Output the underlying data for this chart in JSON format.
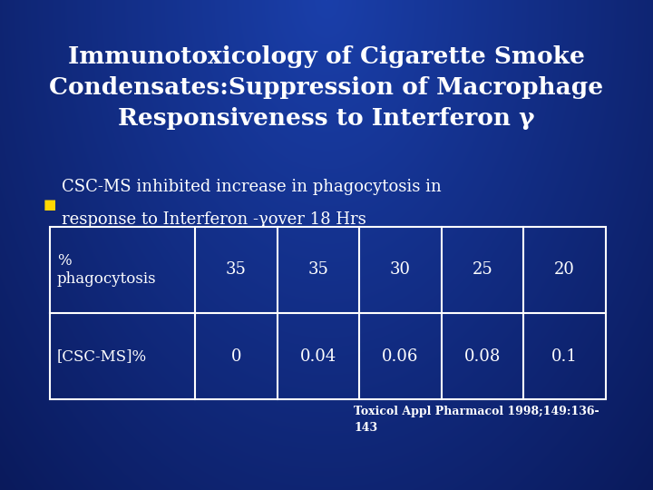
{
  "title_line1": "Immunotoxicology of Cigarette Smoke",
  "title_line2": "Condensates:Suppression of Macrophage",
  "title_line3": "Responsiveness to Interferon γ",
  "bullet_line1": "CSC-MS inhibited increase in phagocytosis in",
  "bullet_line2": "response to Interferon -γover 18 Hrs",
  "bullet_color": "#FFD700",
  "bg_color_center": "#1a3faa",
  "bg_color_edge": "#0a1a5c",
  "text_color": "#ffffff",
  "table_row1_label": "%\nphagocytosis",
  "table_row2_label": "[CSC-MS]%",
  "table_row1_values": [
    "35",
    "35",
    "30",
    "25",
    "20"
  ],
  "table_row2_values": [
    "0",
    "0.04",
    "0.06",
    "0.08",
    "0.1"
  ],
  "table_border_color": "#ffffff",
  "citation_line1": "Toxicol Appl Pharmacol 1998;149:136-",
  "citation_line2": "143",
  "citation_color": "#ffffff"
}
